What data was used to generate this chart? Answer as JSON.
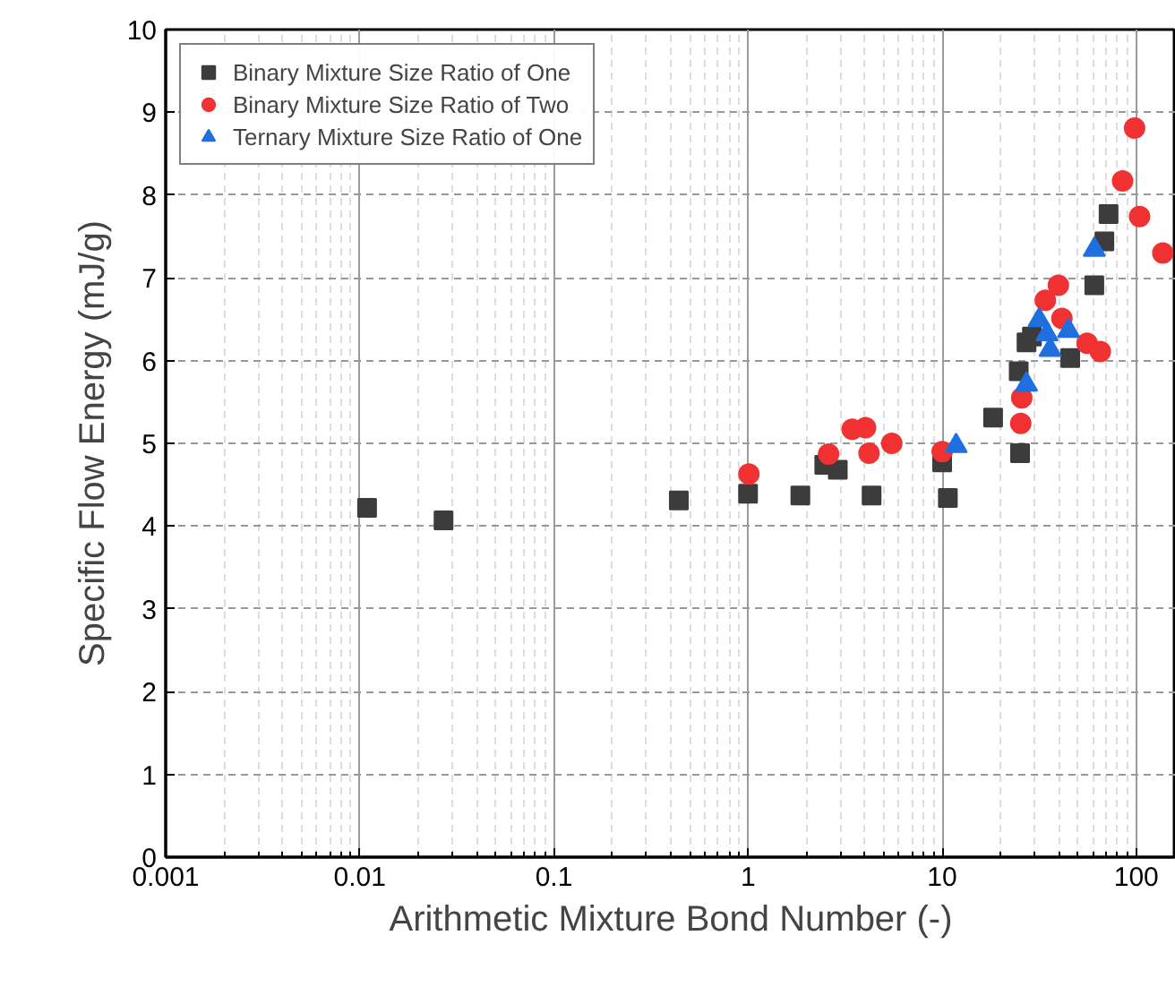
{
  "chart_data": {
    "type": "scatter",
    "xlabel": "Arithmetic Mixture Bond Number (-)",
    "ylabel": "Specific Flow Energy (mJ/g)",
    "log": "x",
    "xlim": [
      0.001,
      160
    ],
    "ylim": [
      0,
      10
    ],
    "xticks": [
      {
        "value": 0.001,
        "label": "0.001"
      },
      {
        "value": 0.01,
        "label": "0.01"
      },
      {
        "value": 0.1,
        "label": "0.1"
      },
      1,
      10,
      100
    ],
    "yticks": [
      0,
      1,
      2,
      3,
      4,
      5,
      6,
      7,
      8,
      9,
      10
    ],
    "grid": true,
    "legend": "top left",
    "series": [
      {
        "name": "Binary Mixture Size Ratio of One",
        "color": "#3c3c3c",
        "marker": "square",
        "x": [
          0.0109,
          0.027,
          0.44,
          1.0,
          1.86,
          2.47,
          2.9,
          4.33,
          10.0,
          10.7,
          18.3,
          25.2,
          24.8,
          27.2,
          29,
          45.7,
          60.8,
          68.5,
          72
        ],
        "values": [
          4.22,
          4.07,
          4.31,
          4.39,
          4.37,
          4.74,
          4.68,
          4.37,
          4.77,
          4.34,
          5.31,
          4.88,
          5.87,
          6.22,
          6.29,
          6.03,
          6.91,
          7.44,
          7.77
        ]
      },
      {
        "name": "Binary Mixture Size Ratio of Two",
        "color": "#f03232",
        "marker": "circle",
        "x": [
          1.01,
          2.6,
          3.44,
          4.03,
          4.2,
          5.5,
          10.0,
          25.4,
          25.7,
          34,
          39.7,
          41.4,
          55.8,
          65.3,
          85,
          98,
          104,
          137
        ],
        "values": [
          4.63,
          4.87,
          5.17,
          5.19,
          4.88,
          5.0,
          4.9,
          5.24,
          5.55,
          6.73,
          6.91,
          6.51,
          6.21,
          6.11,
          8.17,
          8.81,
          7.74,
          7.3
        ]
      },
      {
        "name": "Ternary Mixture Size Ratio of One",
        "color": "#1f6fe0",
        "marker": "triangle",
        "x": [
          11.8,
          27.2,
          31.6,
          34.7,
          36,
          44.8,
          60.8
        ],
        "values": [
          4.97,
          5.71,
          6.49,
          6.32,
          6.13,
          6.36,
          7.34
        ]
      }
    ]
  }
}
